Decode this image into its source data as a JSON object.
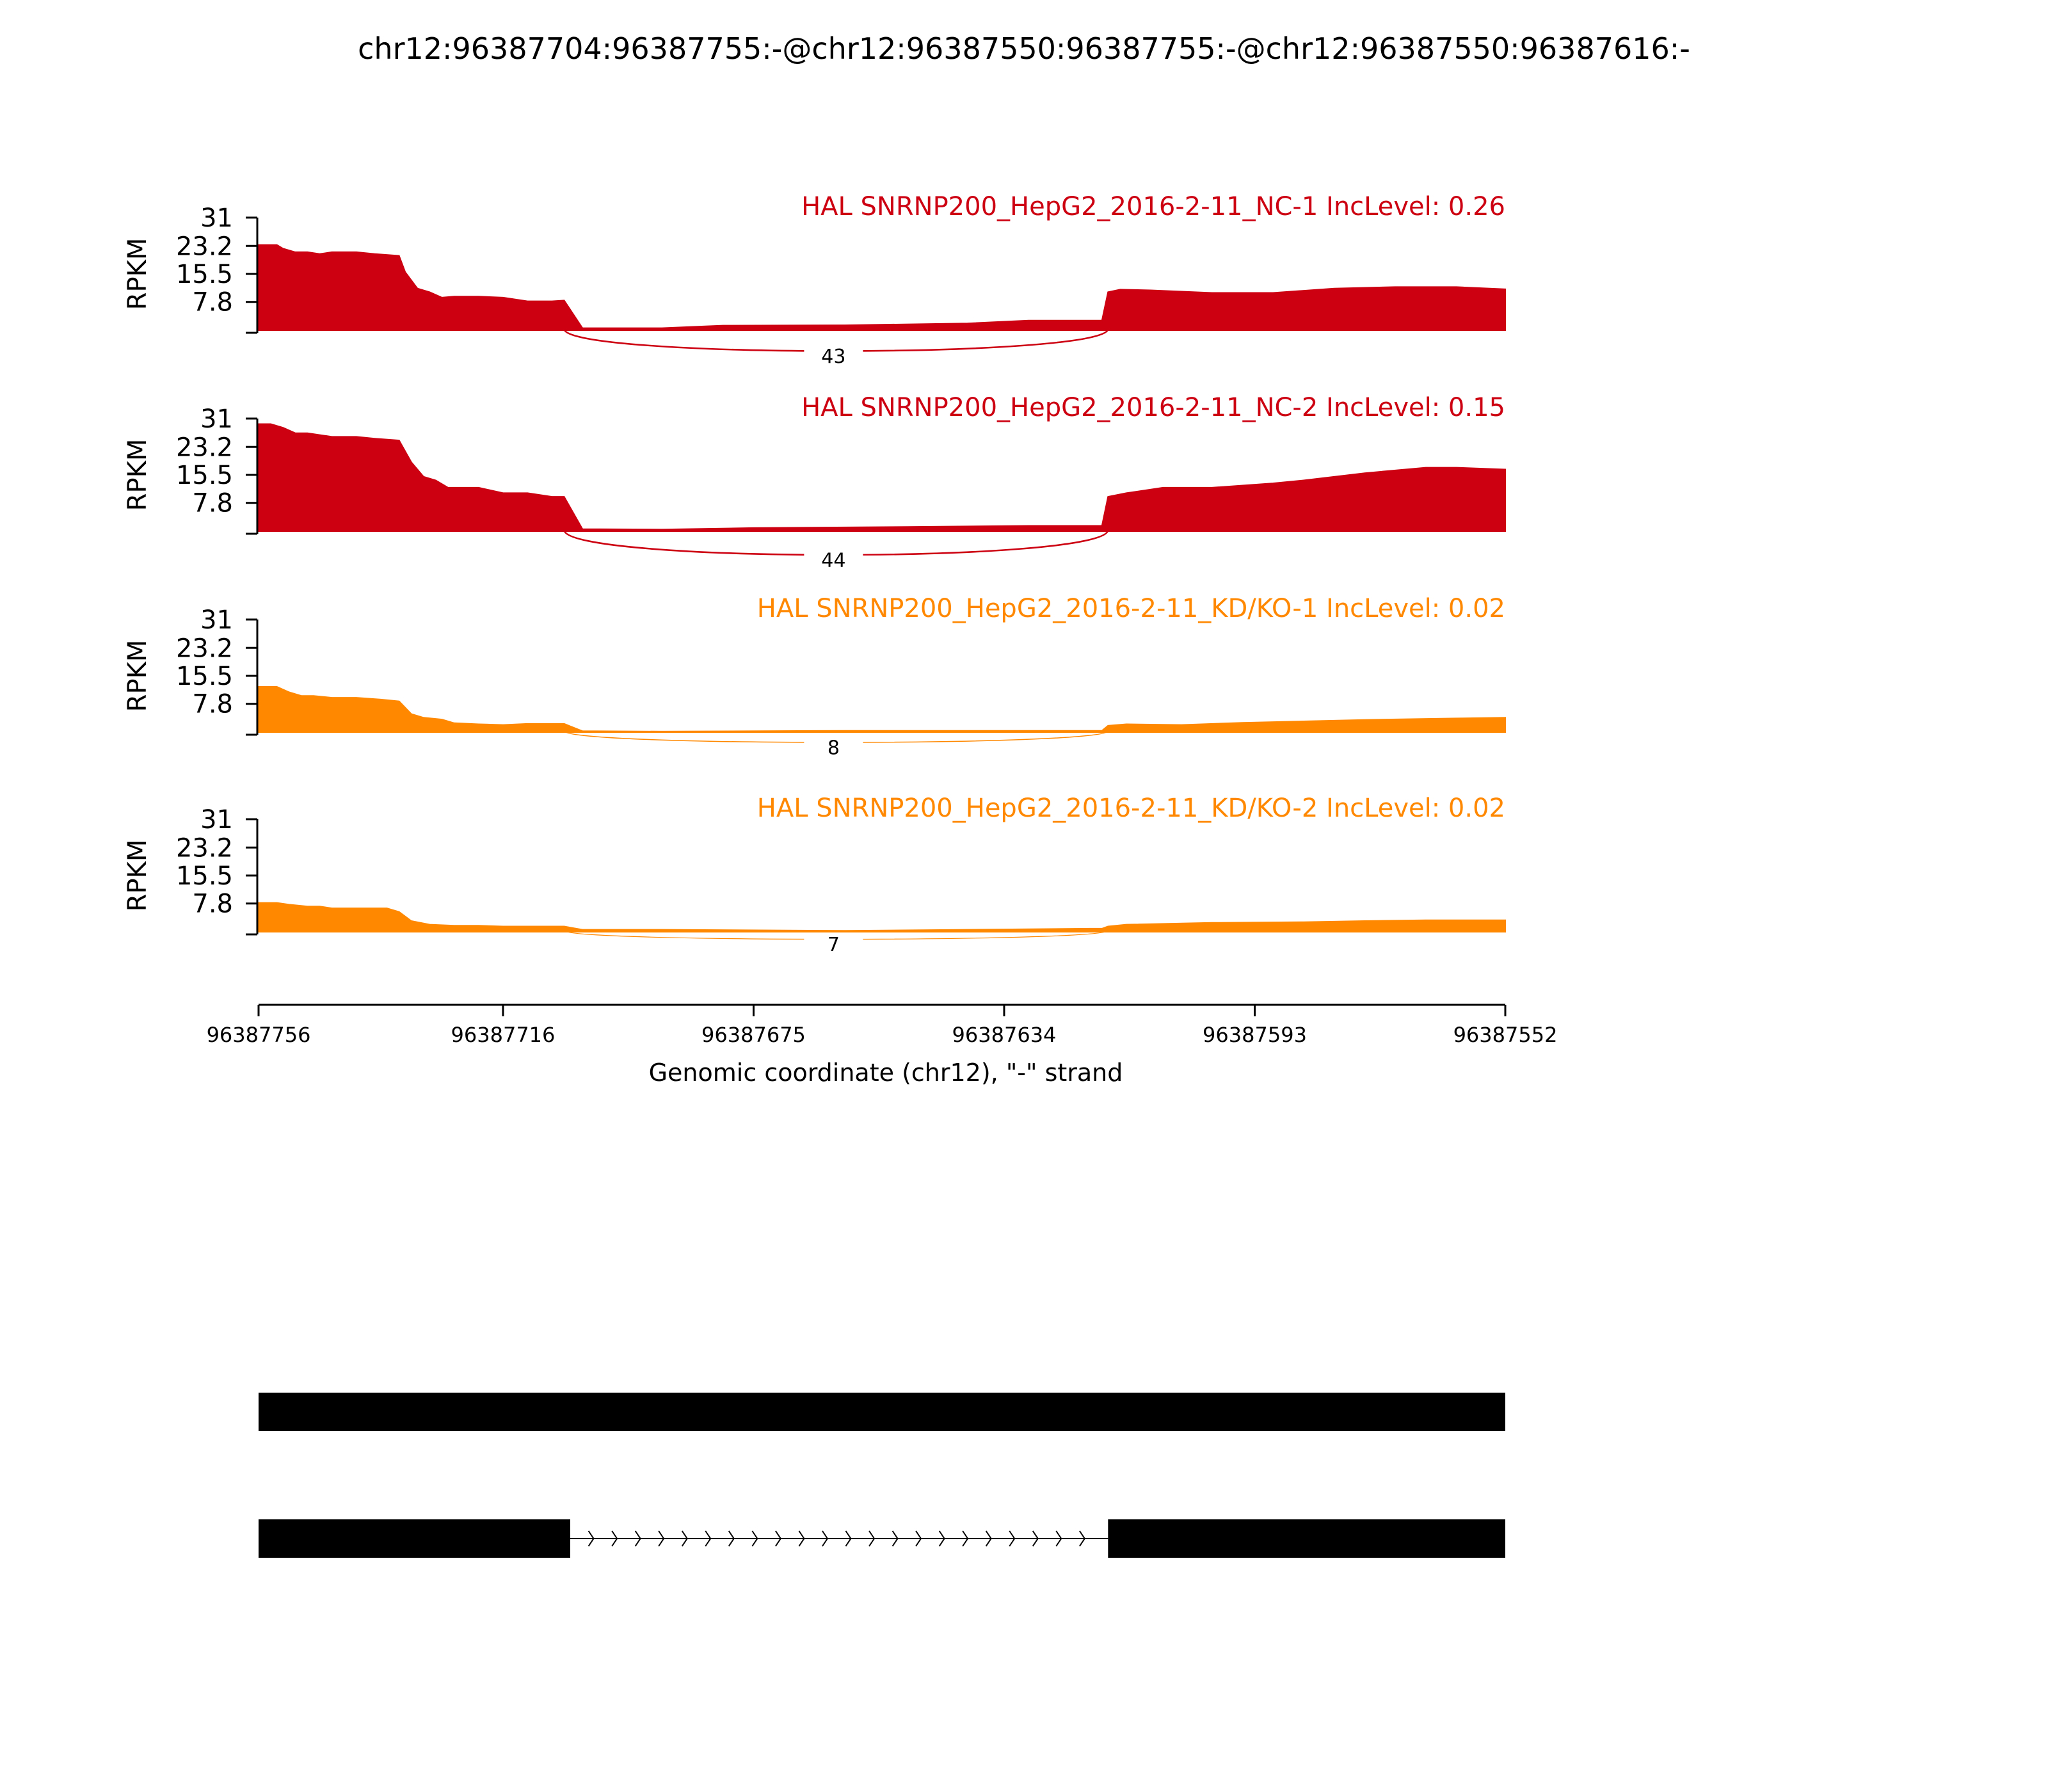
{
  "chart_data": {
    "type": "area",
    "title": "chr12:96387704:96387755:-@chr12:96387550:96387755:-@chr12:96387550:96387616:-",
    "xlabel": "Genomic coordinate (chr12), \"-\" strand",
    "ylabel": "RPKM",
    "x_reversed": true,
    "xlim": [
      96387756,
      96387552
    ],
    "xticks": [
      "96387756",
      "96387716",
      "96387675",
      "96387634",
      "96387593",
      "96387552"
    ],
    "xtick_values": [
      96387756,
      96387716,
      96387675,
      96387634,
      96387593,
      96387552
    ],
    "ylim": [
      0,
      31
    ],
    "yticks": [
      "31",
      "23.2",
      "15.5",
      "7.8"
    ],
    "ytick_values": [
      31,
      23.2,
      15.5,
      7.8
    ],
    "tracks": [
      {
        "label": "HAL SNRNP200_HepG2_2016-2-11_NC-1 IncLevel: 0.26",
        "color": "#cc0011",
        "junction_reads": "43",
        "junction": [
          96387706,
          96387617
        ],
        "x": [
          96387756,
          96387753,
          96387752,
          96387750,
          96387748,
          96387746,
          96387744,
          96387742,
          96387740,
          96387737,
          96387733,
          96387732,
          96387730,
          96387728,
          96387726,
          96387724,
          96387720,
          96387716,
          96387712,
          96387708,
          96387706,
          96387703,
          96387690,
          96387680,
          96387660,
          96387640,
          96387630,
          96387620,
          96387618,
          96387617,
          96387615,
          96387610,
          96387600,
          96387590,
          96387580,
          96387570,
          96387560,
          96387552
        ],
        "values": [
          23.5,
          23.5,
          22.5,
          21.5,
          21.5,
          21.0,
          21.5,
          21.5,
          21.5,
          21.0,
          20.5,
          16.0,
          11.5,
          10.5,
          9.0,
          9.3,
          9.3,
          9.0,
          8.0,
          8.0,
          8.2,
          0.6,
          0.6,
          1.3,
          1.4,
          1.9,
          2.7,
          2.7,
          2.7,
          10.5,
          11.2,
          11.0,
          10.3,
          10.3,
          11.5,
          11.9,
          11.9,
          11.3
        ]
      },
      {
        "label": "HAL SNRNP200_HepG2_2016-2-11_NC-2 IncLevel: 0.15",
        "color": "#cc0011",
        "junction_reads": "44",
        "junction": [
          96387706,
          96387617
        ],
        "x": [
          96387756,
          96387754,
          96387752,
          96387750,
          96387748,
          96387744,
          96387740,
          96387737,
          96387733,
          96387731,
          96387729,
          96387727,
          96387725,
          96387720,
          96387716,
          96387712,
          96387708,
          96387706,
          96387703,
          96387690,
          96387675,
          96387650,
          96387630,
          96387620,
          96387618,
          96387617,
          96387614,
          96387608,
          96387600,
          96387590,
          96387585,
          96387575,
          96387565,
          96387560,
          96387552
        ],
        "values": [
          29.5,
          29.5,
          28.5,
          27.0,
          27.0,
          26.0,
          26.0,
          25.5,
          25.0,
          19.0,
          15.0,
          14.0,
          12.0,
          12.0,
          10.5,
          10.5,
          9.5,
          9.5,
          0.6,
          0.5,
          0.9,
          1.2,
          1.5,
          1.5,
          1.5,
          9.5,
          10.5,
          12.0,
          12.0,
          13.2,
          14.0,
          16.0,
          17.5,
          17.5,
          17.0
        ]
      },
      {
        "label": "HAL SNRNP200_HepG2_2016-2-11_KD/KO-1 IncLevel: 0.02",
        "color": "#ff8800",
        "junction_reads": "8",
        "junction": [
          96387706,
          96387617
        ],
        "x": [
          96387756,
          96387753,
          96387751,
          96387749,
          96387747,
          96387744,
          96387740,
          96387736,
          96387733,
          96387731,
          96387729,
          96387726,
          96387724,
          96387720,
          96387716,
          96387712,
          96387706,
          96387703,
          96387690,
          96387660,
          96387640,
          96387620,
          96387618,
          96387617,
          96387614,
          96387605,
          96387595,
          96387585,
          96387575,
          96387560,
          96387552
        ],
        "values": [
          12.5,
          12.5,
          11.0,
          10.0,
          10.0,
          9.5,
          9.5,
          9.0,
          8.5,
          5.0,
          4.0,
          3.5,
          2.5,
          2.2,
          2.0,
          2.3,
          2.3,
          0.3,
          0.2,
          0.4,
          0.4,
          0.4,
          0.4,
          1.8,
          2.2,
          2.0,
          2.6,
          3.0,
          3.4,
          3.8,
          4.0
        ]
      },
      {
        "label": "HAL SNRNP200_HepG2_2016-2-11_KD/KO-2 IncLevel: 0.02",
        "color": "#ff8800",
        "junction_reads": "7",
        "junction": [
          96387706,
          96387617
        ],
        "x": [
          96387756,
          96387753,
          96387751,
          96387748,
          96387746,
          96387744,
          96387735,
          96387733,
          96387731,
          96387728,
          96387724,
          96387720,
          96387716,
          96387712,
          96387706,
          96387703,
          96387690,
          96387660,
          96387640,
          96387620,
          96387618,
          96387617,
          96387614,
          96387600,
          96387585,
          96387575,
          96387565,
          96387552
        ],
        "values": [
          8.0,
          8.0,
          7.5,
          7.0,
          7.0,
          6.5,
          6.5,
          5.5,
          3.0,
          2.0,
          1.7,
          1.7,
          1.5,
          1.5,
          1.5,
          0.6,
          0.6,
          0.3,
          0.6,
          0.9,
          0.9,
          1.5,
          2.0,
          2.5,
          2.7,
          3.0,
          3.2,
          3.2
        ]
      }
    ],
    "gene_models": [
      {
        "segments": [
          [
            96387756,
            96387552
          ]
        ],
        "intron": null
      },
      {
        "segments": [
          [
            96387756,
            96387705
          ],
          [
            96387617,
            96387552
          ]
        ],
        "intron": [
          96387705,
          96387617
        ]
      }
    ]
  }
}
